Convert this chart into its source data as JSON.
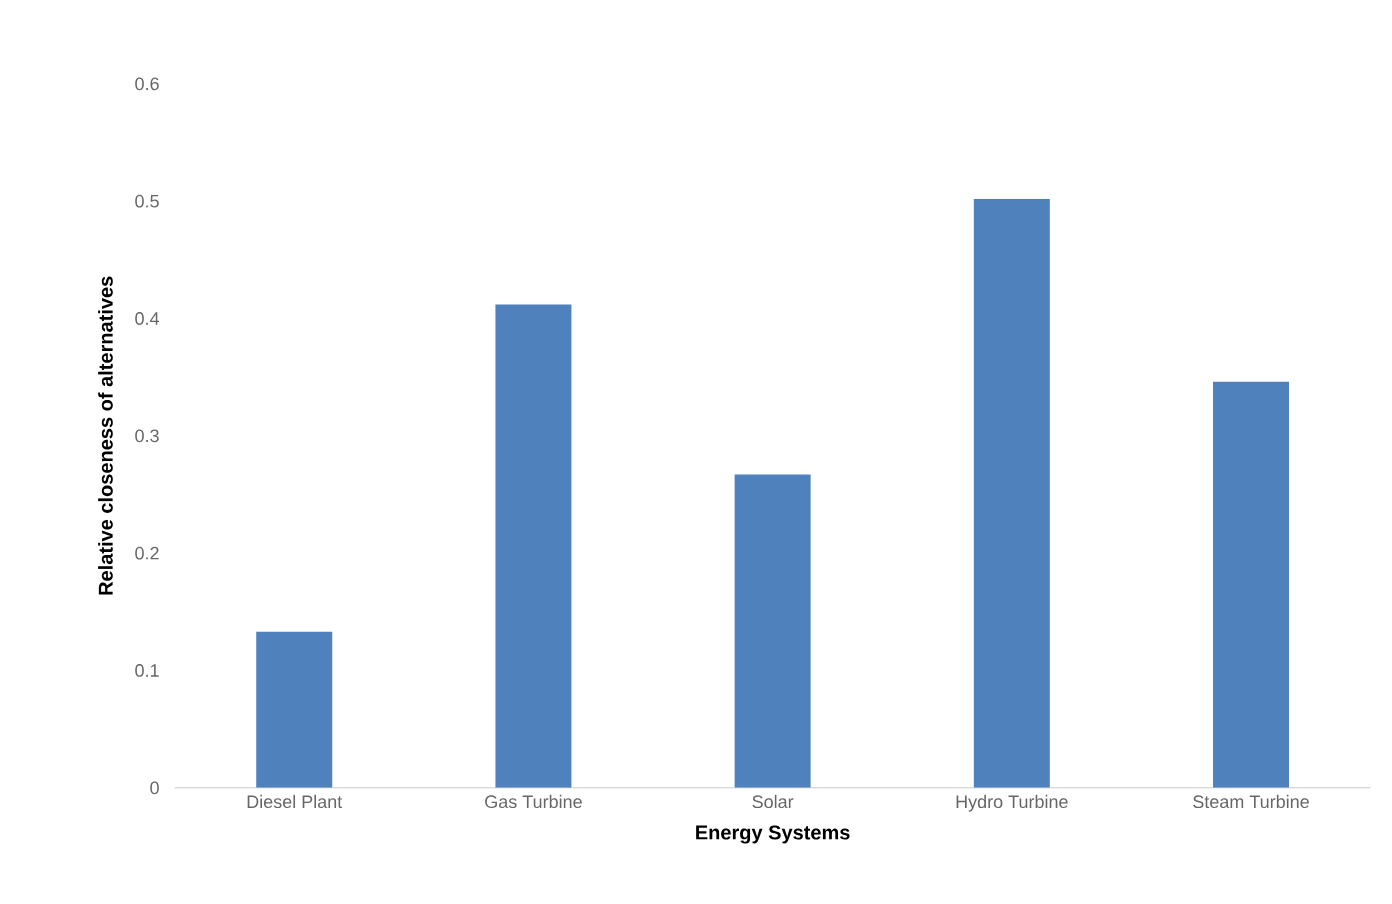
{
  "chart_data": {
    "type": "bar",
    "xlabel": "Energy Systems",
    "ylabel": "Relative closeness of alternatives",
    "categories": [
      "Diesel Plant",
      "Gas Turbine",
      "Solar",
      "Hydro Turbine",
      "Steam Turbine"
    ],
    "values": [
      0.133,
      0.412,
      0.267,
      0.502,
      0.346
    ],
    "color": "#4f81bd",
    "ylim": [
      0,
      0.6
    ],
    "yticks": [
      0,
      0.1,
      0.2,
      0.3,
      0.4,
      0.5,
      0.6
    ],
    "grid": false
  }
}
